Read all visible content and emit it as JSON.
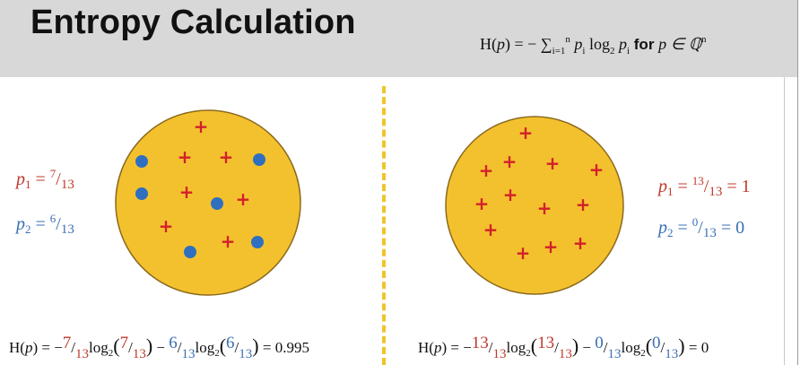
{
  "header": {
    "title": "Entropy Calculation",
    "formula": {
      "lhs": "H(",
      "p": "p",
      "eq": ") = − ∑",
      "sum_sub": "i=1",
      "sum_sup": "n",
      "term_p": " p",
      "term_i": "i",
      "log": " log",
      "log_base": "2",
      "term_p2": " p",
      "term_i2": "i",
      "for": " for ",
      "domain": "p ∈ ℚ",
      "domain_sup": "n"
    }
  },
  "left": {
    "p1": {
      "label": "p",
      "sub": "1",
      "eq": " = ",
      "num": "7",
      "slash": "/",
      "den": "13"
    },
    "p2": {
      "label": "p",
      "sub": "2",
      "eq": " = ",
      "num": "6",
      "slash": "/",
      "den": "13"
    },
    "formula": {
      "head": "H(",
      "p": "p",
      "mid": ") = −",
      "a_num": "7",
      "a_den": "13",
      "log1": "log",
      "log1_base": "2",
      "b_num": "7",
      "b_den": "13",
      "minus": " − ",
      "c_num": "6",
      "c_den": "13",
      "log2": "log",
      "log2_base": "2",
      "d_num": "6",
      "d_den": "13",
      "result": " = 0.995"
    },
    "plus_count": 7,
    "dot_count": 6
  },
  "right": {
    "p1": {
      "label": "p",
      "sub": "1",
      "eq": " = ",
      "num": "13",
      "slash": "/",
      "den": "13",
      "result": " = 1"
    },
    "p2": {
      "label": "p",
      "sub": "2",
      "eq": " = ",
      "num": "0",
      "slash": "/",
      "den": "13",
      "result": " = 0"
    },
    "formula": {
      "head": "H(",
      "p": "p",
      "mid": ") = −",
      "a_num": "13",
      "a_den": "13",
      "log1": "log",
      "log1_base": "2",
      "b_num": "13",
      "b_den": "13",
      "minus": " − ",
      "c_num": "0",
      "c_den": "13",
      "log2": "log",
      "log2_base": "2",
      "d_num": "0",
      "d_den": "13",
      "result": " = 0"
    },
    "plus_count": 13,
    "dot_count": 0
  },
  "colors": {
    "circle_fill": "#f4c12e",
    "circle_stroke": "#8a6a1c",
    "plus": "#d1202a",
    "dot": "#2f6fc0",
    "red_text": "#c0392b",
    "blue_text": "#3a6fb3",
    "header_bg": "#d8d8d8",
    "divider": "#f0c42a"
  }
}
